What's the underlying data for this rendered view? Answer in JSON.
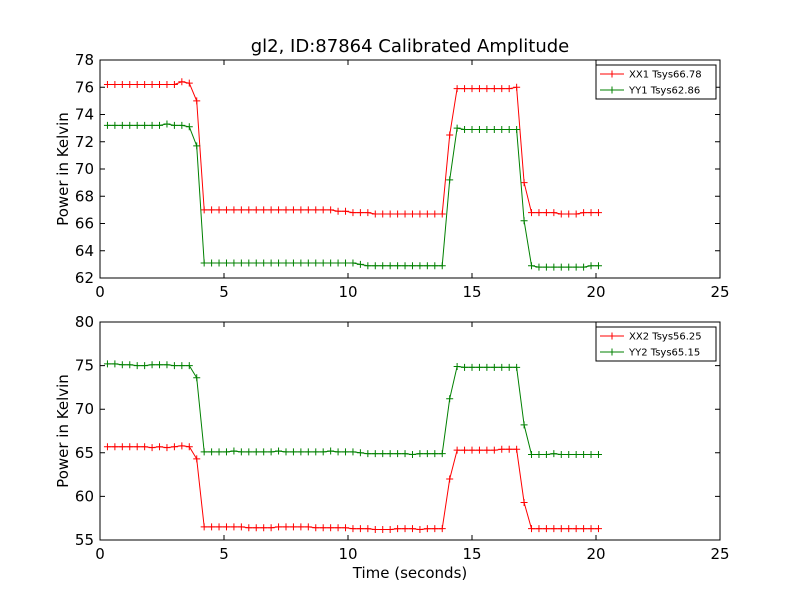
{
  "chart_data": [
    {
      "type": "line",
      "title": "gl2, ID:87864 Calibrated Amplitude",
      "xlabel": "",
      "ylabel": "Power in Kelvin",
      "xlim": [
        0,
        25
      ],
      "ylim": [
        62,
        78
      ],
      "xticks": [
        "0",
        "5",
        "10",
        "15",
        "20",
        "25"
      ],
      "yticks": [
        "62",
        "64",
        "66",
        "68",
        "70",
        "72",
        "74",
        "76",
        "78"
      ],
      "grid": false,
      "legend_position": "top-right",
      "series": [
        {
          "name": "XX1 Tsys66.78",
          "color": "#ff0000",
          "x": [
            0.3,
            0.6,
            0.9,
            1.2,
            1.5,
            1.8,
            2.1,
            2.4,
            2.7,
            3.0,
            3.3,
            3.6,
            3.9,
            4.2,
            4.5,
            4.8,
            5.1,
            5.4,
            5.7,
            6.0,
            6.3,
            6.6,
            6.9,
            7.2,
            7.5,
            7.8,
            8.1,
            8.4,
            8.7,
            9.0,
            9.3,
            9.6,
            9.9,
            10.2,
            10.5,
            10.8,
            11.1,
            11.4,
            11.7,
            12.0,
            12.3,
            12.6,
            12.9,
            13.2,
            13.5,
            13.8,
            14.1,
            14.4,
            14.7,
            15.0,
            15.3,
            15.6,
            15.9,
            16.2,
            16.5,
            16.8,
            17.1,
            17.4,
            17.7,
            18.0,
            18.3,
            18.6,
            18.9,
            19.2,
            19.5,
            19.8,
            20.1
          ],
          "y": [
            76.2,
            76.2,
            76.2,
            76.2,
            76.2,
            76.2,
            76.2,
            76.2,
            76.2,
            76.2,
            76.4,
            76.3,
            75.0,
            67.0,
            67.0,
            67.0,
            67.0,
            67.0,
            67.0,
            67.0,
            67.0,
            67.0,
            67.0,
            67.0,
            67.0,
            67.0,
            67.0,
            67.0,
            67.0,
            67.0,
            67.0,
            66.9,
            66.9,
            66.8,
            66.8,
            66.8,
            66.7,
            66.7,
            66.7,
            66.7,
            66.7,
            66.7,
            66.7,
            66.7,
            66.7,
            66.7,
            72.5,
            75.9,
            75.9,
            75.9,
            75.9,
            75.9,
            75.9,
            75.9,
            75.9,
            76.0,
            69.0,
            66.8,
            66.8,
            66.8,
            66.8,
            66.7,
            66.7,
            66.7,
            66.8,
            66.8,
            66.8
          ]
        },
        {
          "name": "YY1 Tsys62.86",
          "color": "#008000",
          "x": [
            0.3,
            0.6,
            0.9,
            1.2,
            1.5,
            1.8,
            2.1,
            2.4,
            2.7,
            3.0,
            3.3,
            3.6,
            3.9,
            4.2,
            4.5,
            4.8,
            5.1,
            5.4,
            5.7,
            6.0,
            6.3,
            6.6,
            6.9,
            7.2,
            7.5,
            7.8,
            8.1,
            8.4,
            8.7,
            9.0,
            9.3,
            9.6,
            9.9,
            10.2,
            10.5,
            10.8,
            11.1,
            11.4,
            11.7,
            12.0,
            12.3,
            12.6,
            12.9,
            13.2,
            13.5,
            13.8,
            14.1,
            14.4,
            14.7,
            15.0,
            15.3,
            15.6,
            15.9,
            16.2,
            16.5,
            16.8,
            17.1,
            17.4,
            17.7,
            18.0,
            18.3,
            18.6,
            18.9,
            19.2,
            19.5,
            19.8,
            20.1
          ],
          "y": [
            73.2,
            73.2,
            73.2,
            73.2,
            73.2,
            73.2,
            73.2,
            73.2,
            73.3,
            73.2,
            73.2,
            73.1,
            71.7,
            63.1,
            63.1,
            63.1,
            63.1,
            63.1,
            63.1,
            63.1,
            63.1,
            63.1,
            63.1,
            63.1,
            63.1,
            63.1,
            63.1,
            63.1,
            63.1,
            63.1,
            63.1,
            63.1,
            63.1,
            63.1,
            63.0,
            62.9,
            62.9,
            62.9,
            62.9,
            62.9,
            62.9,
            62.9,
            62.9,
            62.9,
            62.9,
            62.9,
            69.2,
            73.0,
            72.9,
            72.9,
            72.9,
            72.9,
            72.9,
            72.9,
            72.9,
            72.9,
            66.2,
            62.9,
            62.8,
            62.8,
            62.8,
            62.8,
            62.8,
            62.8,
            62.8,
            62.9,
            62.9
          ]
        }
      ]
    },
    {
      "type": "line",
      "title": "",
      "xlabel": "Time (seconds)",
      "ylabel": "Power in Kelvin",
      "xlim": [
        0,
        25
      ],
      "ylim": [
        55,
        80
      ],
      "xticks": [
        "0",
        "5",
        "10",
        "15",
        "20",
        "25"
      ],
      "yticks": [
        "55",
        "60",
        "65",
        "70",
        "75",
        "80"
      ],
      "grid": false,
      "legend_position": "top-right",
      "series": [
        {
          "name": "XX2 Tsys56.25",
          "color": "#ff0000",
          "x": [
            0.3,
            0.6,
            0.9,
            1.2,
            1.5,
            1.8,
            2.1,
            2.4,
            2.7,
            3.0,
            3.3,
            3.6,
            3.9,
            4.2,
            4.5,
            4.8,
            5.1,
            5.4,
            5.7,
            6.0,
            6.3,
            6.6,
            6.9,
            7.2,
            7.5,
            7.8,
            8.1,
            8.4,
            8.7,
            9.0,
            9.3,
            9.6,
            9.9,
            10.2,
            10.5,
            10.8,
            11.1,
            11.4,
            11.7,
            12.0,
            12.3,
            12.6,
            12.9,
            13.2,
            13.5,
            13.8,
            14.1,
            14.4,
            14.7,
            15.0,
            15.3,
            15.6,
            15.9,
            16.2,
            16.5,
            16.8,
            17.1,
            17.4,
            17.7,
            18.0,
            18.3,
            18.6,
            18.9,
            19.2,
            19.5,
            19.8,
            20.1
          ],
          "y": [
            65.7,
            65.7,
            65.7,
            65.7,
            65.7,
            65.7,
            65.6,
            65.7,
            65.6,
            65.7,
            65.8,
            65.7,
            64.3,
            56.5,
            56.5,
            56.5,
            56.5,
            56.5,
            56.5,
            56.4,
            56.4,
            56.4,
            56.4,
            56.5,
            56.5,
            56.5,
            56.5,
            56.5,
            56.4,
            56.4,
            56.4,
            56.4,
            56.4,
            56.3,
            56.3,
            56.3,
            56.2,
            56.2,
            56.2,
            56.3,
            56.3,
            56.3,
            56.2,
            56.3,
            56.3,
            56.3,
            62.0,
            65.3,
            65.3,
            65.3,
            65.3,
            65.3,
            65.3,
            65.4,
            65.4,
            65.4,
            59.3,
            56.3,
            56.3,
            56.3,
            56.3,
            56.3,
            56.3,
            56.3,
            56.3,
            56.3,
            56.3
          ]
        },
        {
          "name": "YY2 Tsys65.15",
          "color": "#008000",
          "x": [
            0.3,
            0.6,
            0.9,
            1.2,
            1.5,
            1.8,
            2.1,
            2.4,
            2.7,
            3.0,
            3.3,
            3.6,
            3.9,
            4.2,
            4.5,
            4.8,
            5.1,
            5.4,
            5.7,
            6.0,
            6.3,
            6.6,
            6.9,
            7.2,
            7.5,
            7.8,
            8.1,
            8.4,
            8.7,
            9.0,
            9.3,
            9.6,
            9.9,
            10.2,
            10.5,
            10.8,
            11.1,
            11.4,
            11.7,
            12.0,
            12.3,
            12.6,
            12.9,
            13.2,
            13.5,
            13.8,
            14.1,
            14.4,
            14.7,
            15.0,
            15.3,
            15.6,
            15.9,
            16.2,
            16.5,
            16.8,
            17.1,
            17.4,
            17.7,
            18.0,
            18.3,
            18.6,
            18.9,
            19.2,
            19.5,
            19.8,
            20.1
          ],
          "y": [
            75.2,
            75.2,
            75.1,
            75.1,
            75.0,
            75.0,
            75.1,
            75.1,
            75.1,
            75.0,
            75.0,
            75.0,
            73.6,
            65.1,
            65.1,
            65.1,
            65.1,
            65.2,
            65.1,
            65.1,
            65.1,
            65.1,
            65.1,
            65.2,
            65.1,
            65.1,
            65.1,
            65.1,
            65.1,
            65.1,
            65.2,
            65.1,
            65.1,
            65.1,
            65.0,
            64.9,
            64.9,
            64.9,
            64.9,
            64.9,
            64.9,
            64.8,
            64.9,
            64.9,
            64.9,
            64.9,
            71.2,
            74.9,
            74.8,
            74.8,
            74.8,
            74.8,
            74.8,
            74.8,
            74.8,
            74.8,
            68.2,
            64.8,
            64.8,
            64.8,
            64.9,
            64.8,
            64.8,
            64.8,
            64.8,
            64.8,
            64.8
          ]
        }
      ]
    }
  ]
}
